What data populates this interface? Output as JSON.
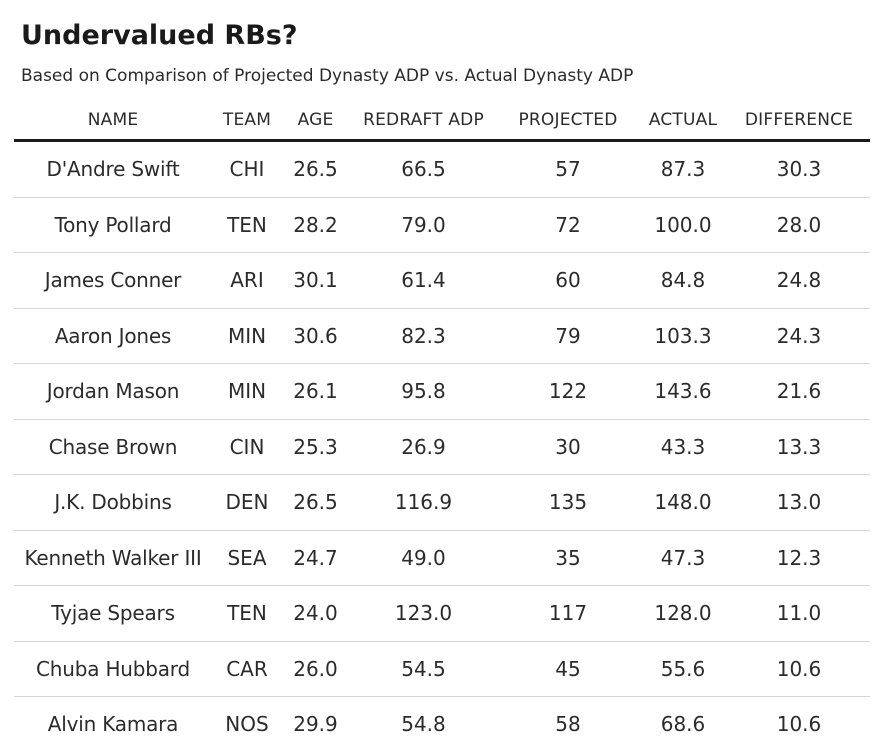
{
  "chart_data": {
    "type": "table",
    "title": "Undervalued RBs?",
    "subtitle": "Based on Comparison of Projected Dynasty ADP vs. Actual Dynasty ADP",
    "columns": [
      "NAME",
      "TEAM",
      "AGE",
      "REDRAFT ADP",
      "PROJECTED",
      "ACTUAL",
      "DIFFERENCE"
    ],
    "rows": [
      [
        "D'Andre Swift",
        "CHI",
        "26.5",
        "66.5",
        "57",
        "87.3",
        "30.3"
      ],
      [
        "Tony Pollard",
        "TEN",
        "28.2",
        "79.0",
        "72",
        "100.0",
        "28.0"
      ],
      [
        "James Conner",
        "ARI",
        "30.1",
        "61.4",
        "60",
        "84.8",
        "24.8"
      ],
      [
        "Aaron Jones",
        "MIN",
        "30.6",
        "82.3",
        "79",
        "103.3",
        "24.3"
      ],
      [
        "Jordan Mason",
        "MIN",
        "26.1",
        "95.8",
        "122",
        "143.6",
        "21.6"
      ],
      [
        "Chase Brown",
        "CIN",
        "25.3",
        "26.9",
        "30",
        "43.3",
        "13.3"
      ],
      [
        "J.K. Dobbins",
        "DEN",
        "26.5",
        "116.9",
        "135",
        "148.0",
        "13.0"
      ],
      [
        "Kenneth Walker III",
        "SEA",
        "24.7",
        "49.0",
        "35",
        "47.3",
        "12.3"
      ],
      [
        "Tyjae Spears",
        "TEN",
        "24.0",
        "123.0",
        "117",
        "128.0",
        "11.0"
      ],
      [
        "Chuba Hubbard",
        "CAR",
        "26.0",
        "54.5",
        "45",
        "55.6",
        "10.6"
      ],
      [
        "Alvin Kamara",
        "NOS",
        "29.9",
        "54.8",
        "58",
        "68.6",
        "10.6"
      ]
    ]
  }
}
